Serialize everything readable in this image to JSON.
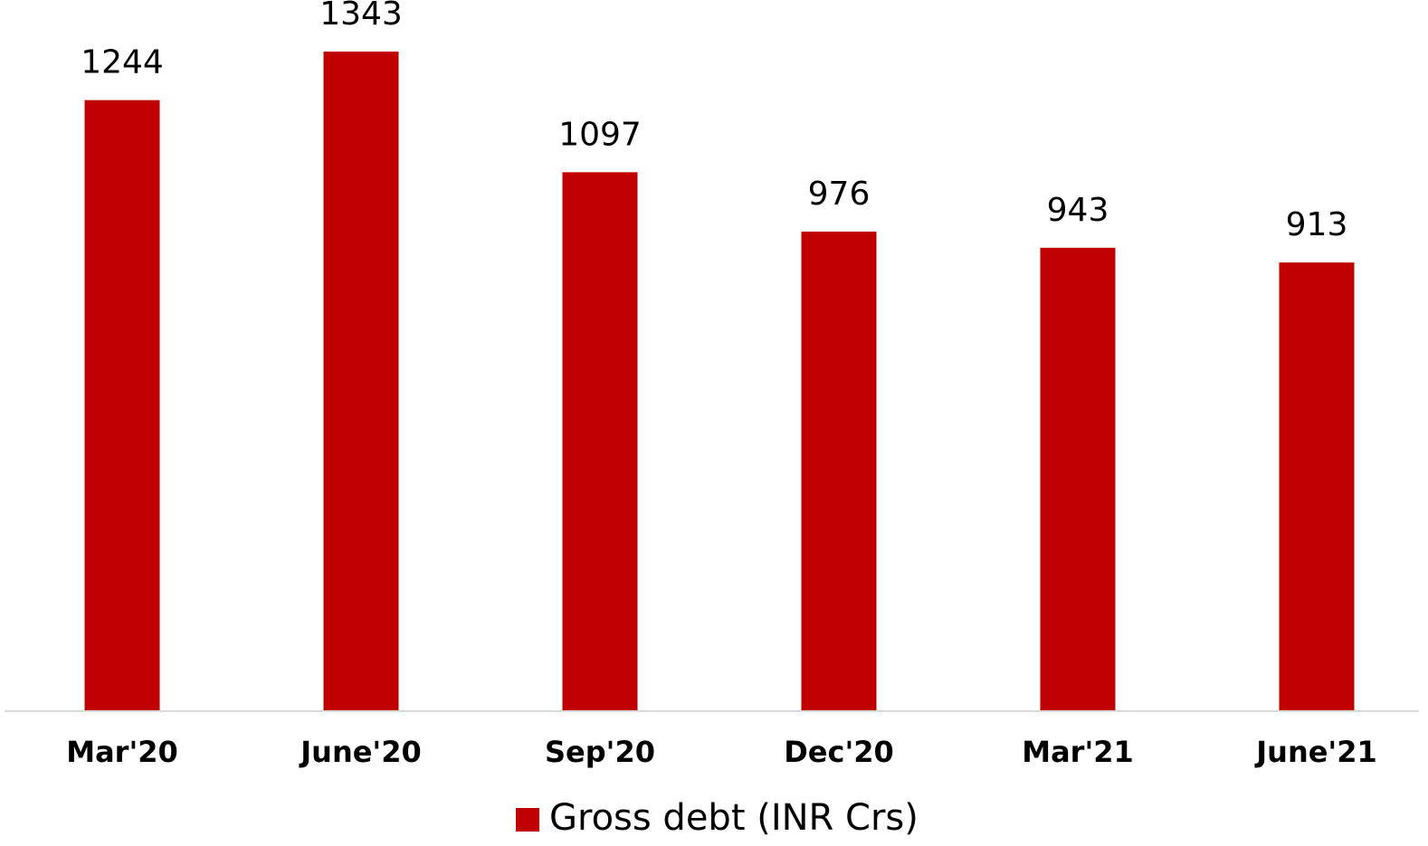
{
  "chart_data": {
    "type": "bar",
    "categories": [
      "Mar'20",
      "June'20",
      "Sep'20",
      "Dec'20",
      "Mar'21",
      "June'21"
    ],
    "series": [
      {
        "name": "Gross debt (INR Crs)",
        "color": "#c00000",
        "values": [
          1244,
          1343,
          1097,
          976,
          943,
          913
        ]
      }
    ],
    "legend": "bottom"
  }
}
